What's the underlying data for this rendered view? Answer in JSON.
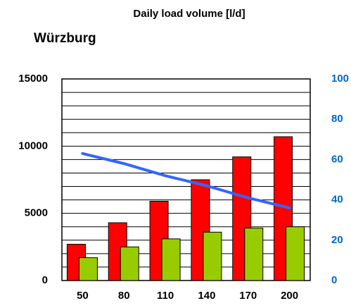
{
  "chart_data": {
    "type": "bar",
    "title": "Daily load volume [l/d]",
    "subtitle": "Würzburg",
    "categories": [
      "50",
      "80",
      "110",
      "140",
      "170",
      "200"
    ],
    "series": [
      {
        "color": "#ff0000",
        "values": [
          2700,
          4300,
          5900,
          7500,
          9200,
          10700
        ]
      },
      {
        "color": "#99cc00",
        "values": [
          1700,
          2500,
          3100,
          3600,
          3900,
          4000
        ]
      },
      {
        "color": "#3366ff",
        "type": "line",
        "axis": "y2",
        "values": [
          63,
          58,
          52,
          47,
          41,
          36
        ]
      }
    ],
    "ylim": [
      0,
      15000
    ],
    "yticks": [
      0,
      5000,
      10000,
      15000
    ],
    "grid_yticks": [
      1000,
      2000,
      3000,
      4000,
      6000,
      7000,
      8000,
      9000,
      11000,
      12000,
      13000,
      14000
    ],
    "y2lim": [
      0,
      100
    ],
    "y2ticks": [
      0,
      20,
      40,
      60,
      80,
      100
    ],
    "y2color": "#0066cc",
    "grid": true
  }
}
